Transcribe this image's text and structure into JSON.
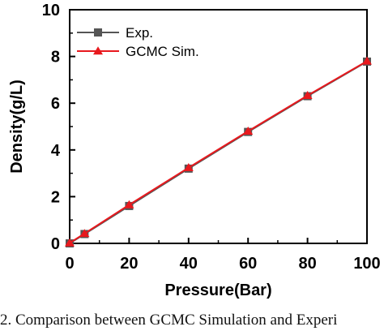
{
  "chart_data": {
    "type": "line",
    "title": "",
    "xlabel": "Pressure(Bar)",
    "ylabel": "Density(g/L)",
    "xlim": [
      0,
      100
    ],
    "ylim": [
      0,
      10
    ],
    "x_ticks": [
      "0",
      "20",
      "40",
      "60",
      "80",
      "100"
    ],
    "y_ticks": [
      "0",
      "2",
      "4",
      "6",
      "8",
      "10"
    ],
    "grid": false,
    "legend_position": "top-left",
    "series": [
      {
        "name": "Exp.",
        "color": "#555555",
        "marker": "square",
        "x": [
          0,
          5,
          20,
          40,
          60,
          80,
          100
        ],
        "y": [
          0.0,
          0.4,
          1.6,
          3.2,
          4.77,
          6.3,
          7.78
        ]
      },
      {
        "name": "GCMC Sim.",
        "color": "#e8191e",
        "marker": "triangle",
        "x": [
          0,
          5,
          20,
          40,
          60,
          80,
          100
        ],
        "y": [
          0.02,
          0.42,
          1.65,
          3.24,
          4.8,
          6.33,
          7.8
        ]
      }
    ]
  },
  "caption": "2. Comparison between GCMC Simulation and Experi"
}
